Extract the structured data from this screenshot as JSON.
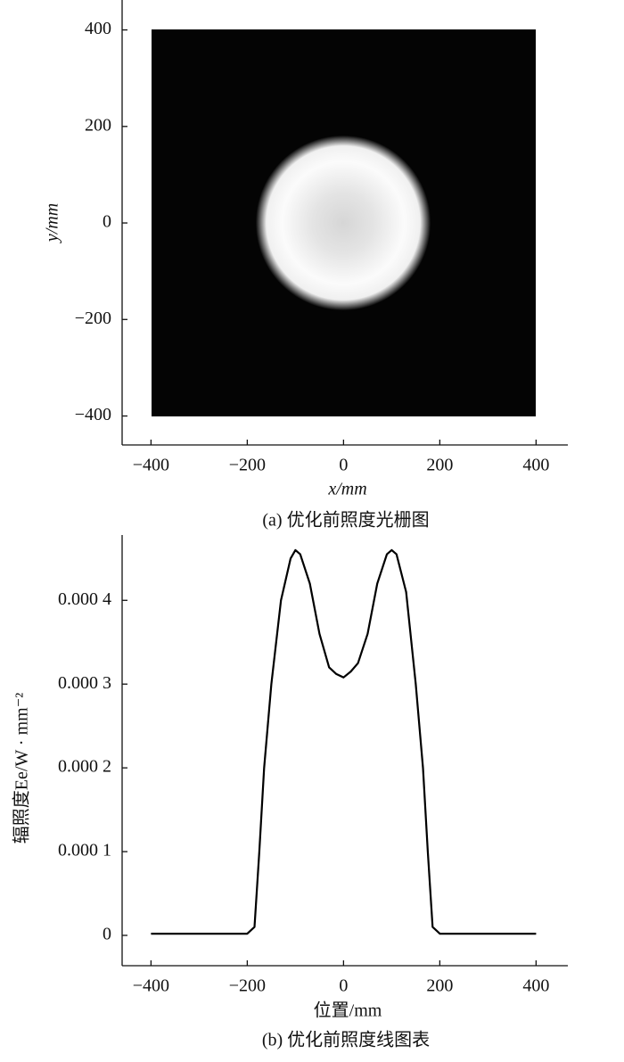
{
  "chart_data": [
    {
      "type": "raster",
      "xlabel": "x/mm",
      "ylabel": "y/mm",
      "caption": "(a) 优化前照度光栅图",
      "xlim": [
        -460,
        466
      ],
      "ylim": [
        -460,
        462
      ],
      "xticks": [
        {
          "value": -400,
          "label": "−400"
        },
        {
          "value": -200,
          "label": "−200"
        },
        0,
        200,
        400
      ],
      "yticks": [
        {
          "value": -400,
          "label": "−400"
        },
        {
          "value": -200,
          "label": "−200"
        },
        0,
        200,
        400
      ]
    },
    {
      "type": "line",
      "xlabel": "位置/mm",
      "ylabel": "辐照度Ee/W · mm⁻²",
      "caption": "(b) 优化前照度线图表",
      "xlim": [
        -460,
        466
      ],
      "ylim": [
        -3.62e-05,
        0.000478
      ],
      "xticks": [
        {
          "value": -400,
          "label": "−400"
        },
        {
          "value": -200,
          "label": "−200"
        },
        0,
        200,
        400
      ],
      "yticks": [
        0,
        {
          "value": 0.0001,
          "label": "0.000 1"
        },
        {
          "value": 0.0002,
          "label": "0.000 2"
        },
        {
          "value": 0.0003,
          "label": "0.000 3"
        },
        {
          "value": 0.0004,
          "label": "0.000 4"
        }
      ],
      "color": "#000000",
      "x": [
        -400,
        -200,
        -185,
        -175,
        -165,
        -150,
        -130,
        -110,
        -100,
        -90,
        -70,
        -50,
        -30,
        -15,
        0,
        15,
        30,
        50,
        70,
        90,
        100,
        110,
        130,
        150,
        165,
        175,
        185,
        200,
        400
      ],
      "values": [
        2e-06,
        2e-06,
        1e-05,
        0.0001,
        0.0002,
        0.0003,
        0.0004,
        0.00045,
        0.00046,
        0.000455,
        0.00042,
        0.00036,
        0.00032,
        0.000312,
        0.000308,
        0.000315,
        0.000325,
        0.00036,
        0.00042,
        0.000455,
        0.00046,
        0.000455,
        0.00041,
        0.0003,
        0.0002,
        0.0001,
        1e-05,
        2e-06,
        2e-06
      ]
    }
  ]
}
